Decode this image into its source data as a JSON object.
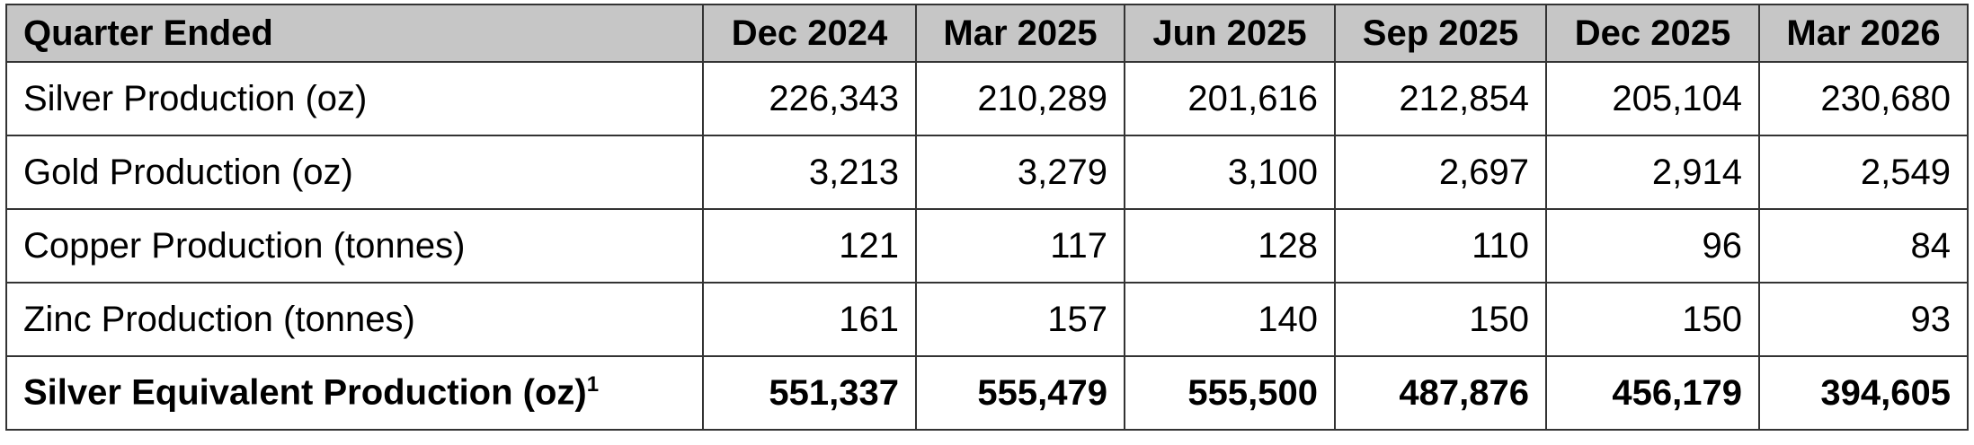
{
  "table": {
    "header": [
      "Quarter Ended",
      "Dec 2024",
      "Mar 2025",
      "Jun 2025",
      "Sep 2025",
      "Dec 2025",
      "Mar 2026"
    ],
    "rows": [
      [
        "Silver Production (oz)",
        "226,343",
        "210,289",
        "201,616",
        "212,854",
        "205,104",
        "230,680"
      ],
      [
        "Gold Production (oz)",
        "3,213",
        "3,279",
        "3,100",
        "2,697",
        "2,914",
        "2,549"
      ],
      [
        "Copper Production (tonnes)",
        "121",
        "117",
        "128",
        "110",
        "96",
        "84"
      ],
      [
        "Zinc Production (tonnes)",
        "161",
        "157",
        "140",
        "150",
        "150",
        "93"
      ],
      [
        "Silver Equivalent Production (oz)",
        "551,337",
        "555,479",
        "555,500",
        "487,876",
        "456,179",
        "394,605"
      ]
    ],
    "footnote_mark": "1"
  }
}
